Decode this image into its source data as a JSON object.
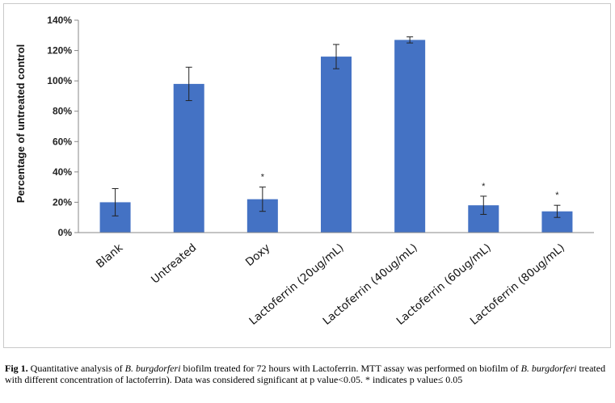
{
  "chart_data": {
    "type": "bar",
    "categories": [
      "Blank",
      "Untreated",
      "Doxy",
      "Lactoferrin (20ug/mL)",
      "Lactoferrin (40ug/mL)",
      "Lactoferrin (60ug/mL)",
      "Lactoferrin (80ug/mL)"
    ],
    "values": [
      20,
      98,
      22,
      116,
      127,
      18,
      14
    ],
    "errors": [
      9,
      11,
      8,
      8,
      2,
      6,
      4
    ],
    "significance": [
      "",
      "",
      "*",
      "",
      "",
      "*",
      "*"
    ],
    "ylabel": "Percentage of untreated control",
    "ylim": [
      0,
      140
    ],
    "yticks": [
      0,
      20,
      40,
      60,
      80,
      100,
      120,
      140
    ],
    "ytick_labels": [
      "0%",
      "20%",
      "40%",
      "60%",
      "80%",
      "100%",
      "120%",
      "140%"
    ],
    "grid": false,
    "legend": "none",
    "bar_color": "#4472c4"
  },
  "caption": {
    "label": "Fig 1.",
    "part1": " Quantitative analysis of ",
    "species1": "B. burgdorferi",
    "part2": " biofilm treated for 72 hours with Lactoferrin. MTT assay was performed on biofilm of ",
    "species2": "B. burgdorferi",
    "part3": " treated with different concentration of lactoferrin). Data was considered significant at p value<0.05.   * indicates p value≤ 0.05"
  }
}
